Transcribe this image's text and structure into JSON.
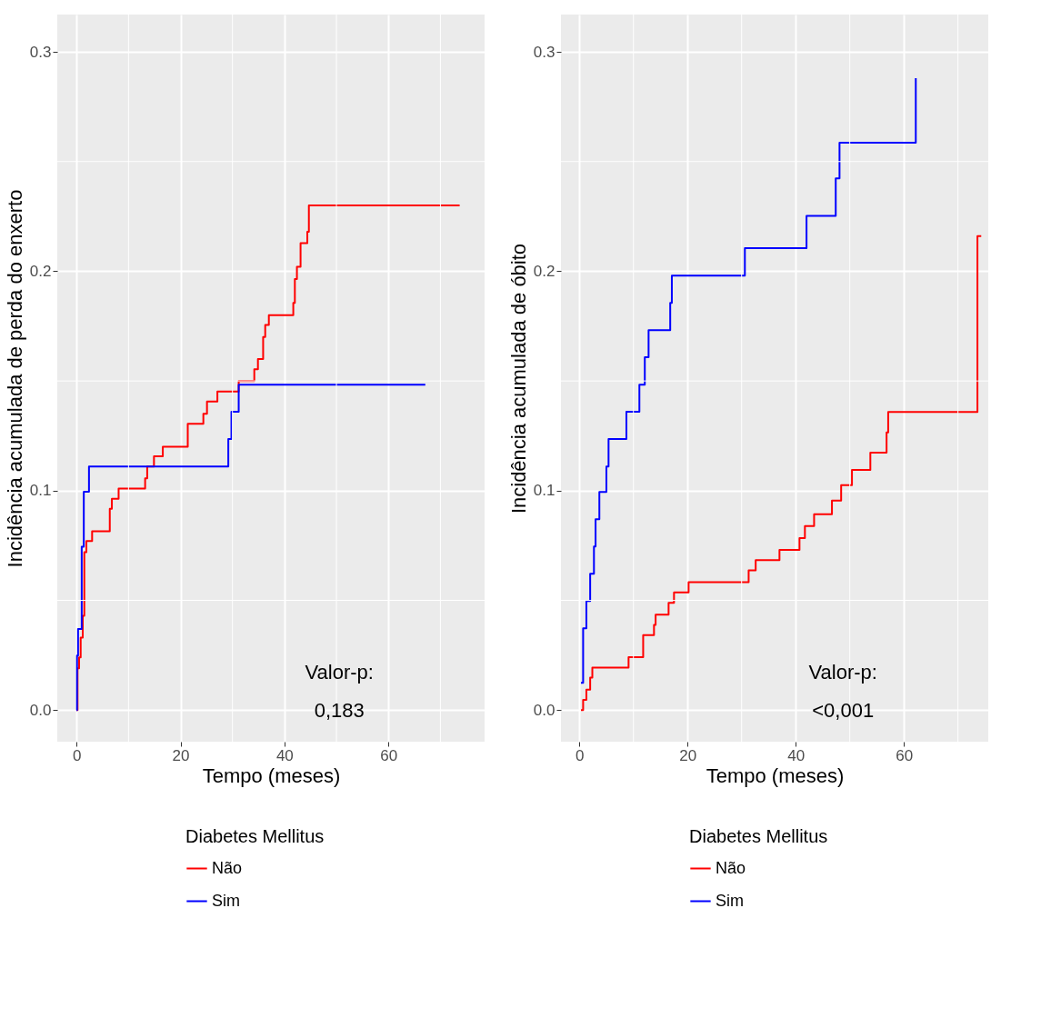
{
  "chart_data": [
    {
      "type": "step",
      "xlabel": "Tempo (meses)",
      "ylabel": "Incidência acumulada de perda do enxerto",
      "legend_title": "Diabetes Mellitus",
      "xlim": [
        -3.7,
        78.5
      ],
      "ylim": [
        -0.0144,
        0.317
      ],
      "xticks": [
        0,
        20,
        40,
        60
      ],
      "yticks": [
        {
          "value": 0,
          "label": "0.0"
        },
        {
          "value": 0.1,
          "label": "0.1"
        },
        {
          "value": 0.2,
          "label": "0.2"
        },
        {
          "value": 0.3,
          "label": "0.3"
        }
      ],
      "grid": true,
      "legend": "bottom",
      "annotations": [
        "Valor-p:",
        "0,183"
      ],
      "series": [
        {
          "name": "Não",
          "color": "#ff0000",
          "x": [
            0,
            0.2,
            0.5,
            0.8,
            1.2,
            1.5,
            1.9,
            3.0,
            6.4,
            6.8,
            8.1,
            13.2,
            13.6,
            14.9,
            16.6,
            21.4,
            24.4,
            25.1,
            27.1,
            31.2,
            34.2,
            34.9,
            35.9,
            36.3,
            37.0,
            41.7,
            42.0,
            42.4,
            43.1,
            44.4,
            44.7,
            73.7
          ],
          "values": [
            0,
            0.019,
            0.024,
            0.033,
            0.043,
            0.072,
            0.077,
            0.0815,
            0.0917,
            0.0963,
            0.101,
            0.1056,
            0.111,
            0.1157,
            0.12,
            0.1305,
            0.135,
            0.1406,
            0.1452,
            0.15,
            0.1553,
            0.16,
            0.17,
            0.1755,
            0.18,
            0.1856,
            0.1965,
            0.202,
            0.2128,
            0.218,
            0.23,
            0.23
          ]
        },
        {
          "name": "Sim",
          "color": "#0000ff",
          "x": [
            0,
            0.1,
            0.3,
            1.0,
            1.4,
            2.4,
            29.2,
            29.8,
            31.2,
            67.1
          ],
          "values": [
            0,
            0.0249,
            0.037,
            0.0745,
            0.0995,
            0.111,
            0.1235,
            0.136,
            0.1483,
            0.1483
          ]
        }
      ]
    },
    {
      "type": "step",
      "xlabel": "Tempo (meses)",
      "ylabel": "Incidência acumulada de óbito",
      "legend_title": "Diabetes Mellitus",
      "xlim": [
        -3.4,
        75.6
      ],
      "ylim": [
        -0.0144,
        0.317
      ],
      "xticks": [
        0,
        20,
        40,
        60
      ],
      "yticks": [
        {
          "value": 0,
          "label": "0.0"
        },
        {
          "value": 0.1,
          "label": "0.1"
        },
        {
          "value": 0.2,
          "label": "0.2"
        },
        {
          "value": 0.3,
          "label": "0.3"
        }
      ],
      "grid": true,
      "legend": "bottom",
      "annotations": [
        "Valor-p:",
        "<0,001"
      ],
      "series": [
        {
          "name": "Não",
          "color": "#ff0000",
          "x": [
            0.3,
            0.7,
            1.3,
            2.0,
            2.4,
            9.1,
            11.8,
            13.8,
            14.1,
            16.5,
            17.5,
            20.2,
            31.3,
            32.6,
            37.0,
            40.7,
            41.7,
            43.4,
            46.7,
            48.4,
            50.4,
            53.8,
            56.8,
            57.1,
            73.6,
            74.3
          ],
          "values": [
            0,
            0.0047,
            0.0093,
            0.0148,
            0.0194,
            0.0241,
            0.0342,
            0.0388,
            0.0435,
            0.0489,
            0.0536,
            0.0583,
            0.0637,
            0.0683,
            0.073,
            0.0784,
            0.0839,
            0.0893,
            0.0955,
            0.1025,
            0.1095,
            0.1173,
            0.1266,
            0.1359,
            0.216,
            0.216
          ]
        },
        {
          "name": "Sim",
          "color": "#0000ff",
          "x": [
            0.3,
            0.7,
            1.3,
            2.0,
            2.7,
            3.0,
            3.7,
            5.0,
            5.4,
            8.7,
            11.1,
            12.1,
            12.8,
            16.8,
            17.1,
            30.6,
            42.0,
            47.4,
            48.1,
            62.2
          ],
          "values": [
            0.0124,
            0.0373,
            0.0497,
            0.0621,
            0.0746,
            0.087,
            0.0994,
            0.111,
            0.1235,
            0.136,
            0.1483,
            0.1608,
            0.1732,
            0.1856,
            0.198,
            0.2105,
            0.2252,
            0.2423,
            0.2586,
            0.288
          ]
        }
      ]
    }
  ]
}
